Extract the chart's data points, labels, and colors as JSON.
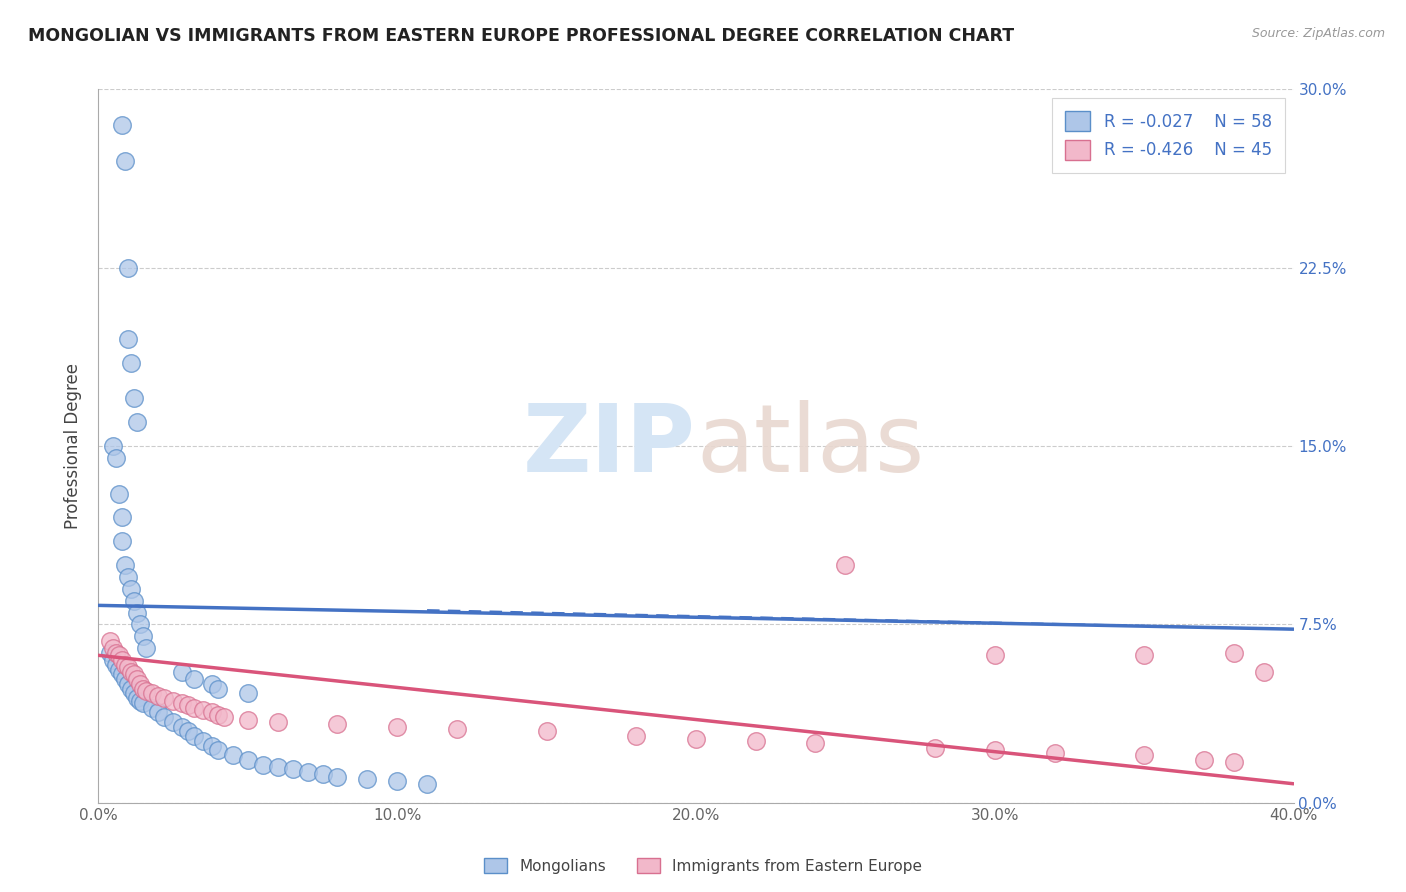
{
  "title": "MONGOLIAN VS IMMIGRANTS FROM EASTERN EUROPE PROFESSIONAL DEGREE CORRELATION CHART",
  "source": "Source: ZipAtlas.com",
  "ylabel": "Professional Degree",
  "xlim": [
    0.0,
    0.4
  ],
  "ylim": [
    0.0,
    0.3
  ],
  "xtick_vals": [
    0.0,
    0.1,
    0.2,
    0.3,
    0.4
  ],
  "xtick_labels": [
    "0.0%",
    "10.0%",
    "20.0%",
    "30.0%",
    "40.0%"
  ],
  "ytick_vals": [
    0.0,
    0.075,
    0.15,
    0.225,
    0.3
  ],
  "ytick_labels_right": [
    "0.0%",
    "7.5%",
    "15.0%",
    "22.5%",
    "30.0%"
  ],
  "color_mongolian_fill": "#aec6e8",
  "color_mongolian_edge": "#5b8fc9",
  "color_ee_fill": "#f2b8ca",
  "color_ee_edge": "#d87090",
  "color_line_mongolian": "#4472c4",
  "color_line_ee": "#d9547a",
  "color_grid": "#cccccc",
  "watermark_color": "#d5e5f5",
  "mongo_x": [
    0.008,
    0.009,
    0.01,
    0.01,
    0.011,
    0.012,
    0.013,
    0.005,
    0.006,
    0.007,
    0.008,
    0.008,
    0.009,
    0.01,
    0.011,
    0.012,
    0.013,
    0.014,
    0.015,
    0.016,
    0.004,
    0.005,
    0.006,
    0.007,
    0.008,
    0.009,
    0.01,
    0.011,
    0.012,
    0.013,
    0.014,
    0.015,
    0.018,
    0.02,
    0.022,
    0.025,
    0.028,
    0.03,
    0.032,
    0.035,
    0.038,
    0.04,
    0.045,
    0.05,
    0.055,
    0.06,
    0.065,
    0.07,
    0.075,
    0.08,
    0.09,
    0.1,
    0.11,
    0.028,
    0.032,
    0.038,
    0.04,
    0.05
  ],
  "mongo_y": [
    0.285,
    0.27,
    0.225,
    0.195,
    0.185,
    0.17,
    0.16,
    0.15,
    0.145,
    0.13,
    0.12,
    0.11,
    0.1,
    0.095,
    0.09,
    0.085,
    0.08,
    0.075,
    0.07,
    0.065,
    0.063,
    0.06,
    0.058,
    0.056,
    0.054,
    0.052,
    0.05,
    0.048,
    0.046,
    0.044,
    0.043,
    0.042,
    0.04,
    0.038,
    0.036,
    0.034,
    0.032,
    0.03,
    0.028,
    0.026,
    0.024,
    0.022,
    0.02,
    0.018,
    0.016,
    0.015,
    0.014,
    0.013,
    0.012,
    0.011,
    0.01,
    0.009,
    0.008,
    0.055,
    0.052,
    0.05,
    0.048,
    0.046
  ],
  "ee_x": [
    0.004,
    0.005,
    0.006,
    0.007,
    0.008,
    0.009,
    0.01,
    0.011,
    0.012,
    0.013,
    0.014,
    0.015,
    0.016,
    0.018,
    0.02,
    0.022,
    0.025,
    0.028,
    0.03,
    0.032,
    0.035,
    0.038,
    0.04,
    0.042,
    0.05,
    0.06,
    0.08,
    0.1,
    0.12,
    0.15,
    0.18,
    0.2,
    0.22,
    0.24,
    0.28,
    0.3,
    0.32,
    0.35,
    0.37,
    0.38,
    0.25,
    0.3,
    0.35,
    0.38,
    0.39
  ],
  "ee_y": [
    0.068,
    0.065,
    0.063,
    0.062,
    0.06,
    0.058,
    0.057,
    0.055,
    0.054,
    0.052,
    0.05,
    0.048,
    0.047,
    0.046,
    0.045,
    0.044,
    0.043,
    0.042,
    0.041,
    0.04,
    0.039,
    0.038,
    0.037,
    0.036,
    0.035,
    0.034,
    0.033,
    0.032,
    0.031,
    0.03,
    0.028,
    0.027,
    0.026,
    0.025,
    0.023,
    0.022,
    0.021,
    0.02,
    0.018,
    0.017,
    0.1,
    0.062,
    0.062,
    0.063,
    0.055
  ],
  "blue_line_x": [
    0.0,
    0.4
  ],
  "blue_line_y": [
    0.083,
    0.073
  ],
  "pink_line_x": [
    0.0,
    0.4
  ],
  "pink_line_y": [
    0.062,
    0.008
  ]
}
